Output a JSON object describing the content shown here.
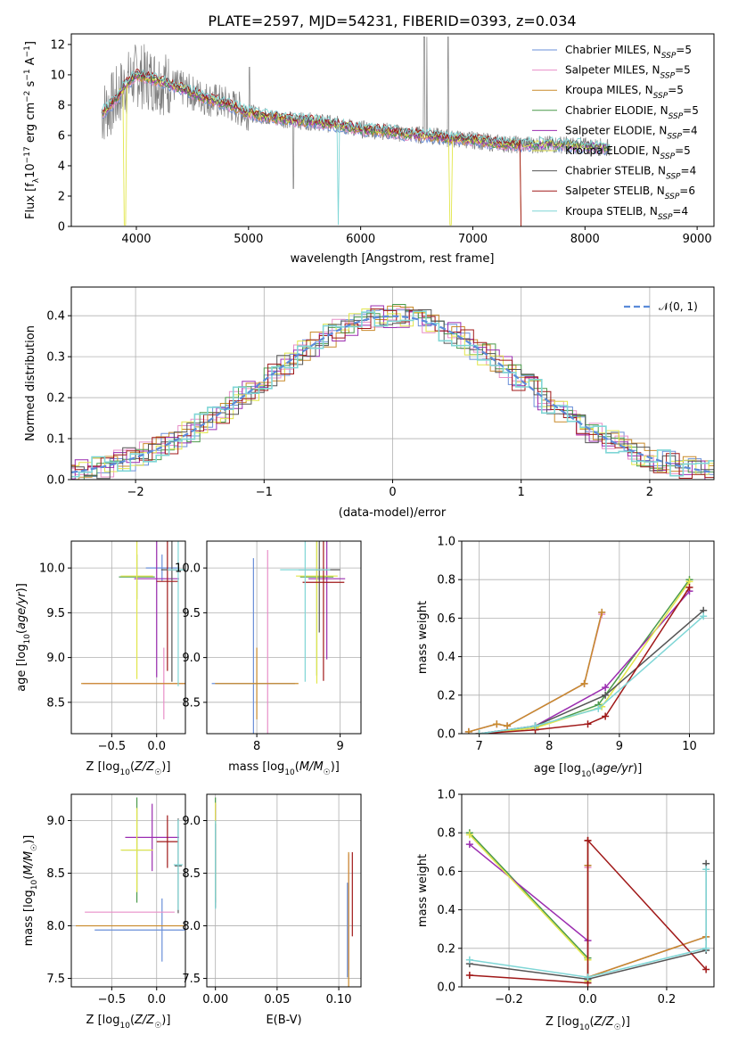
{
  "colors": [
    "#6a8fd8",
    "#e88fc8",
    "#c98a2a",
    "#4a9a4a",
    "#9b2db0",
    "#e2e64a",
    "#555555",
    "#a01818",
    "#7fd6d6"
  ],
  "chart_data": [
    {
      "id": "spectrum",
      "type": "line",
      "title": "PLATE=2597, MJD=54231, FIBERID=0393, z=0.034",
      "xlabel": "wavelength [Angstrom, rest frame]",
      "ylabel_text": "Flux [f",
      "xlim": [
        3420,
        9150
      ],
      "ylim": [
        0,
        12.7
      ],
      "xticks": [
        4000,
        5000,
        6000,
        7000,
        8000,
        9000
      ],
      "yticks": [
        0,
        2,
        4,
        6,
        8,
        10,
        12
      ],
      "grid": false,
      "legend": "top-right",
      "series": [
        {
          "name": "Chabrier MILES, N",
          "n": "5"
        },
        {
          "name": "Salpeter MILES, N",
          "n": "5"
        },
        {
          "name": "Kroupa MILES, N",
          "n": "5"
        },
        {
          "name": "Chabrier ELODIE, N",
          "n": "5"
        },
        {
          "name": "Salpeter ELODIE, N",
          "n": "4"
        },
        {
          "name": "Kroupa ELODIE, N",
          "n": "5"
        },
        {
          "name": "Chabrier STELIB, N",
          "n": "4"
        },
        {
          "name": "Salpeter STELIB, N",
          "n": "6"
        },
        {
          "name": "Kroupa STELIB, N",
          "n": "4"
        }
      ],
      "model_continuum": {
        "x": [
          3700,
          3800,
          3900,
          4000,
          4200,
          4400,
          4600,
          4800,
          5000,
          5200,
          5400,
          5600,
          5800,
          6000,
          6200,
          6400,
          6600,
          6800,
          7000,
          7200,
          7400,
          7600,
          7800,
          8000,
          8200
        ],
        "y": [
          7.5,
          8.2,
          9.3,
          10.0,
          9.6,
          9.1,
          8.5,
          8.1,
          7.5,
          7.2,
          7.0,
          6.9,
          6.7,
          6.4,
          6.3,
          6.1,
          6.0,
          5.8,
          5.7,
          5.5,
          5.4,
          5.4,
          5.4,
          5.3,
          5.2
        ]
      }
    },
    {
      "id": "residuals",
      "type": "step",
      "xlabel": "(data-model)/error",
      "ylabel": "Normed distribution",
      "xlim": [
        -2.5,
        2.5
      ],
      "ylim": [
        0,
        0.47
      ],
      "xticks": [
        -2,
        -1,
        0,
        1,
        2
      ],
      "yticks": [
        0.0,
        0.1,
        0.2,
        0.3,
        0.4
      ],
      "grid": true,
      "legend": "top-right",
      "gaussian_label": "𝒩(0, 1)"
    },
    {
      "id": "age-vs-Z",
      "type": "errorbar",
      "xlabel": "Z [log",
      "ylabel": "age  [log",
      "xlim": [
        -0.95,
        0.32
      ],
      "ylim": [
        8.15,
        10.3
      ],
      "xticks": [
        -0.5,
        0.0
      ],
      "yticks": [
        8.5,
        9.0,
        9.5,
        10.0
      ],
      "grid": true,
      "points": [
        {
          "x": 0.06,
          "y": 10.0,
          "xe": 0.18,
          "ye": 0.15
        },
        {
          "x": 0.08,
          "y": 8.71,
          "xe": 0.9,
          "ye": 0.4
        },
        {
          "x": 0.06,
          "y": 8.71,
          "xe": 0.9,
          "ye": 0.0
        },
        {
          "x": -0.22,
          "y": 9.9,
          "xe": 0.2,
          "ye": 0.25
        },
        {
          "x": 0.0,
          "y": 9.88,
          "xe": 0.25,
          "ye": 1.1
        },
        {
          "x": -0.22,
          "y": 9.91,
          "xe": 0.18,
          "ye": 1.15
        },
        {
          "x": 0.17,
          "y": 9.98,
          "xe": 0.12,
          "ye": 1.25
        },
        {
          "x": 0.12,
          "y": 9.85,
          "xe": 0.12,
          "ye": 1.0
        },
        {
          "x": 0.24,
          "y": 9.98,
          "xe": 0.12,
          "ye": 1.3
        }
      ]
    },
    {
      "id": "age-vs-mass",
      "type": "errorbar",
      "xlabel": "mass [log",
      "xlim": [
        7.4,
        9.25
      ],
      "ylim": [
        8.15,
        10.3
      ],
      "xticks": [
        8,
        9
      ],
      "yticks": [
        8.5,
        9.0,
        9.5,
        10.0
      ],
      "grid": true,
      "points": [
        {
          "x": 7.96,
          "y": 8.71,
          "xe": 0.5,
          "ye": 1.4
        },
        {
          "x": 8.13,
          "y": 9.0,
          "xe": 0.0,
          "ye": 1.2
        },
        {
          "x": 8.0,
          "y": 8.71,
          "xe": 0.5,
          "ye": 0.4
        },
        {
          "x": 8.72,
          "y": 9.9,
          "xe": 0.2,
          "ye": 1.1
        },
        {
          "x": 8.84,
          "y": 9.88,
          "xe": 0.22,
          "ye": 0.9
        },
        {
          "x": 8.72,
          "y": 9.91,
          "xe": 0.25,
          "ye": 1.2
        },
        {
          "x": 8.75,
          "y": 9.98,
          "xe": 0.25,
          "ye": 0.7
        },
        {
          "x": 8.8,
          "y": 9.84,
          "xe": 0.25,
          "ye": 1.1
        },
        {
          "x": 8.58,
          "y": 9.98,
          "xe": 0.3,
          "ye": 1.25
        }
      ]
    },
    {
      "id": "mw-vs-age",
      "type": "line",
      "xlabel": "age  [log",
      "ylabel": "mass weight",
      "xlim": [
        6.75,
        10.35
      ],
      "ylim": [
        0,
        1.0
      ],
      "xticks": [
        7,
        8,
        9,
        10
      ],
      "yticks": [
        0.0,
        0.2,
        0.4,
        0.6,
        0.8,
        1.0
      ],
      "grid": true,
      "series": [
        {
          "x": [
            6.85,
            7.25,
            7.4,
            8.5,
            8.75
          ],
          "y": [
            0.01,
            0.05,
            0.04,
            0.26,
            0.63
          ]
        },
        {
          "x": [
            6.85,
            7.25,
            7.4,
            8.5,
            8.75
          ],
          "y": [
            0.01,
            0.05,
            0.04,
            0.26,
            0.62
          ]
        },
        {
          "x": [
            6.85,
            7.25,
            7.4,
            8.5,
            8.75
          ],
          "y": [
            0.01,
            0.05,
            0.04,
            0.26,
            0.63
          ]
        },
        {
          "x": [
            7.0,
            7.8,
            8.7,
            10.0
          ],
          "y": [
            0.0,
            0.03,
            0.15,
            0.8
          ]
        },
        {
          "x": [
            7.0,
            7.8,
            8.8,
            10.0
          ],
          "y": [
            0.0,
            0.04,
            0.24,
            0.74
          ]
        },
        {
          "x": [
            7.0,
            7.8,
            8.75,
            10.0
          ],
          "y": [
            0.0,
            0.03,
            0.14,
            0.79
          ]
        },
        {
          "x": [
            7.0,
            7.8,
            8.8,
            10.2
          ],
          "y": [
            0.0,
            0.04,
            0.2,
            0.64
          ]
        },
        {
          "x": [
            7.0,
            7.8,
            8.55,
            8.8,
            10.0
          ],
          "y": [
            0.0,
            0.02,
            0.05,
            0.09,
            0.76
          ]
        },
        {
          "x": [
            7.0,
            7.8,
            8.7,
            10.2
          ],
          "y": [
            0.0,
            0.04,
            0.13,
            0.61
          ]
        }
      ]
    },
    {
      "id": "mass-vs-Z",
      "type": "errorbar",
      "xlabel": "Z [log",
      "ylabel": "mass [log",
      "xlim": [
        -0.95,
        0.32
      ],
      "ylim": [
        7.42,
        9.25
      ],
      "xticks": [
        -0.5,
        0.0
      ],
      "yticks": [
        7.5,
        8.0,
        8.5,
        9.0
      ],
      "grid": true,
      "points": [
        {
          "x": 0.06,
          "y": 7.96,
          "xe": 0.75,
          "ye": 0.3
        },
        {
          "x": -0.3,
          "y": 8.13,
          "xe": 0.5,
          "ye": 0.0
        },
        {
          "x": -0.1,
          "y": 8.0,
          "xe": 0.8,
          "ye": 0.0
        },
        {
          "x": -0.22,
          "y": 8.72,
          "xe": 0.17,
          "ye": 0.5
        },
        {
          "x": -0.05,
          "y": 8.84,
          "xe": 0.3,
          "ye": 0.32
        },
        {
          "x": -0.22,
          "y": 8.72,
          "xe": 0.18,
          "ye": 0.4
        },
        {
          "x": 0.24,
          "y": 8.57,
          "xe": 0.04,
          "ye": 0.45
        },
        {
          "x": 0.12,
          "y": 8.8,
          "xe": 0.12,
          "ye": 0.25
        },
        {
          "x": 0.24,
          "y": 8.58,
          "xe": 0.05,
          "ye": 0.43
        }
      ]
    },
    {
      "id": "mass-vs-EBV",
      "type": "errorbar",
      "xlabel": "E(B-V)",
      "xlim": [
        -0.007,
        0.118
      ],
      "ylim": [
        7.42,
        9.25
      ],
      "xticks": [
        0.0,
        0.05,
        0.1
      ],
      "yticks": [
        7.5,
        8.0,
        8.5,
        9.0
      ],
      "grid": true,
      "points": [
        {
          "x": 0.107,
          "y": 7.96,
          "xe": 0.0,
          "ye": 0.45
        },
        {
          "x": 0.108,
          "y": 8.13,
          "xe": 0.0,
          "ye": 0.55
        },
        {
          "x": 0.108,
          "y": 8.0,
          "xe": 0.0,
          "ye": 0.7
        },
        {
          "x": 0.0,
          "y": 8.72,
          "xe": 0.0,
          "ye": 0.5
        },
        {
          "x": 0.0,
          "y": 8.84,
          "xe": 0.0,
          "ye": 0.32
        },
        {
          "x": 0.0,
          "y": 8.72,
          "xe": 0.0,
          "ye": 0.45
        },
        {
          "x": 0.0,
          "y": 8.57,
          "xe": 0.0,
          "ye": 0.4
        },
        {
          "x": 0.111,
          "y": 8.3,
          "xe": 0.0,
          "ye": 0.4
        },
        {
          "x": 0.0,
          "y": 8.58,
          "xe": 0.0,
          "ye": 0.42
        }
      ]
    },
    {
      "id": "mw-vs-Z",
      "type": "line",
      "xlabel": "Z [log",
      "ylabel": "mass weight",
      "xlim": [
        -0.32,
        0.32
      ],
      "ylim": [
        0,
        1.0
      ],
      "xticks": [
        -0.2,
        0.0,
        0.2
      ],
      "yticks": [
        0.0,
        0.2,
        0.4,
        0.6,
        0.8,
        1.0
      ],
      "grid": true,
      "series": [
        {
          "x": [
            0.0,
            0.0,
            0.0,
            0.3
          ],
          "y": [
            0.63,
            0.76,
            0.05,
            0.26
          ]
        },
        {
          "x": [
            0.0,
            0.0,
            0.0,
            0.3
          ],
          "y": [
            0.62,
            0.76,
            0.05,
            0.26
          ]
        },
        {
          "x": [
            0.0,
            0.0,
            0.0,
            0.3
          ],
          "y": [
            0.63,
            0.76,
            0.05,
            0.26
          ]
        },
        {
          "x": [
            -0.3,
            0.0,
            0.0
          ],
          "y": [
            0.8,
            0.15,
            0.03
          ]
        },
        {
          "x": [
            -0.3,
            0.0,
            0.0
          ],
          "y": [
            0.74,
            0.24,
            0.04
          ]
        },
        {
          "x": [
            -0.3,
            0.0,
            0.0
          ],
          "y": [
            0.79,
            0.14,
            0.03
          ]
        },
        {
          "x": [
            -0.3,
            0.0,
            0.3,
            0.3
          ],
          "y": [
            0.12,
            0.04,
            0.19,
            0.64
          ]
        },
        {
          "x": [
            -0.3,
            0.0,
            0.0,
            0.3
          ],
          "y": [
            0.06,
            0.02,
            0.76,
            0.09
          ]
        },
        {
          "x": [
            -0.3,
            0.0,
            0.3,
            0.3
          ],
          "y": [
            0.14,
            0.05,
            0.2,
            0.61
          ]
        }
      ]
    }
  ]
}
